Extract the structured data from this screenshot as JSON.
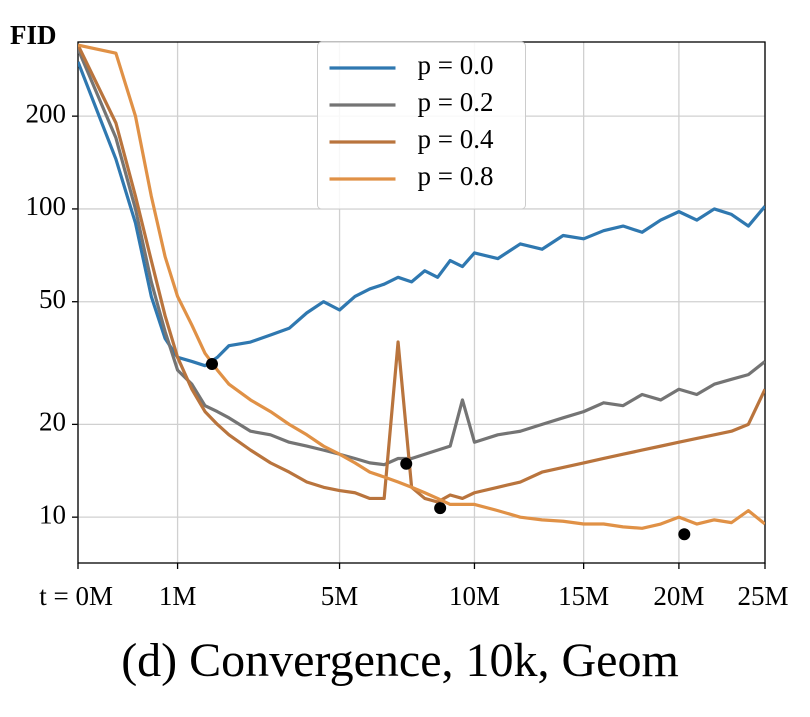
{
  "chart_data": {
    "type": "line",
    "caption": "(d) Convergence, 10k, Geom",
    "ylabel": "FID",
    "yscale": "log",
    "xscale": "power",
    "xexponent": 0.6,
    "grid": true,
    "legend": "upper center",
    "xlim": [
      0,
      25
    ],
    "ylim": [
      7.1,
      348
    ],
    "xticks": [
      {
        "value": 0,
        "label": "t = 0M"
      },
      {
        "value": 1,
        "label": "1M"
      },
      {
        "value": 5,
        "label": "5M"
      },
      {
        "value": 10,
        "label": "10M"
      },
      {
        "value": 15,
        "label": "15M"
      },
      {
        "value": 20,
        "label": "20M"
      },
      {
        "value": 25,
        "label": "25M"
      }
    ],
    "yticks": [
      10,
      20,
      50,
      100,
      200
    ],
    "x": [
      0,
      0.2,
      0.4,
      0.6,
      0.8,
      1,
      1.25,
      1.5,
      1.75,
      2,
      2.5,
      3,
      3.5,
      4,
      4.5,
      5,
      5.5,
      6,
      6.5,
      7,
      7.5,
      8,
      8.5,
      9,
      9.5,
      10,
      11,
      12,
      13,
      14,
      15,
      16,
      17,
      18,
      19,
      20,
      21,
      22,
      23,
      24,
      25
    ],
    "series": [
      {
        "name": "p = 0.0",
        "color": "#2f78b0",
        "values": [
          300,
          145,
          90,
          52,
          38,
          33,
          32,
          31,
          33,
          36,
          37,
          39,
          41,
          46,
          50,
          47,
          52,
          55,
          57,
          60,
          58,
          63,
          60,
          68,
          65,
          72,
          69,
          77,
          74,
          82,
          80,
          85,
          88,
          84,
          92,
          98,
          92,
          100,
          96,
          88,
          102
        ]
      },
      {
        "name": "p = 0.2",
        "color": "#747474",
        "values": [
          330,
          170,
          100,
          58,
          40,
          30,
          27,
          23,
          22,
          21,
          19,
          18.5,
          17.5,
          17,
          16.5,
          16,
          15.5,
          15,
          14.8,
          15.5,
          15.5,
          16,
          16.5,
          17,
          24,
          17.5,
          18.5,
          19,
          20,
          21,
          22,
          23.5,
          23,
          25,
          24,
          26,
          25,
          27,
          28,
          29,
          32
        ]
      },
      {
        "name": "p = 0.4",
        "color": "#b9743d",
        "values": [
          340,
          190,
          110,
          68,
          45,
          33,
          26,
          22,
          20,
          18.5,
          16.5,
          15,
          14,
          13,
          12.5,
          12.2,
          12,
          11.5,
          11.5,
          37,
          12.5,
          11.5,
          11.2,
          11.8,
          11.5,
          12,
          12.5,
          13,
          14,
          14.5,
          15,
          15.5,
          16,
          16.5,
          17,
          17.5,
          18,
          18.5,
          19,
          20,
          26
        ]
      },
      {
        "name": "p = 0.8",
        "color": "#e09146",
        "values": [
          340,
          320,
          200,
          110,
          70,
          52,
          42,
          34,
          30,
          27,
          24,
          22,
          20,
          18.5,
          17,
          16,
          15,
          14,
          13.5,
          13,
          12.5,
          12,
          11.5,
          11,
          11,
          11,
          10.5,
          10,
          9.8,
          9.7,
          9.5,
          9.5,
          9.3,
          9.2,
          9.5,
          10,
          9.5,
          9.8,
          9.6,
          10.5,
          9.5
        ]
      }
    ],
    "points": {
      "color": "#000000",
      "x": [
        1.64,
        7.3,
        8.6,
        20.3
      ],
      "y": [
        31.4,
        14.9,
        10.7,
        8.8
      ]
    }
  }
}
